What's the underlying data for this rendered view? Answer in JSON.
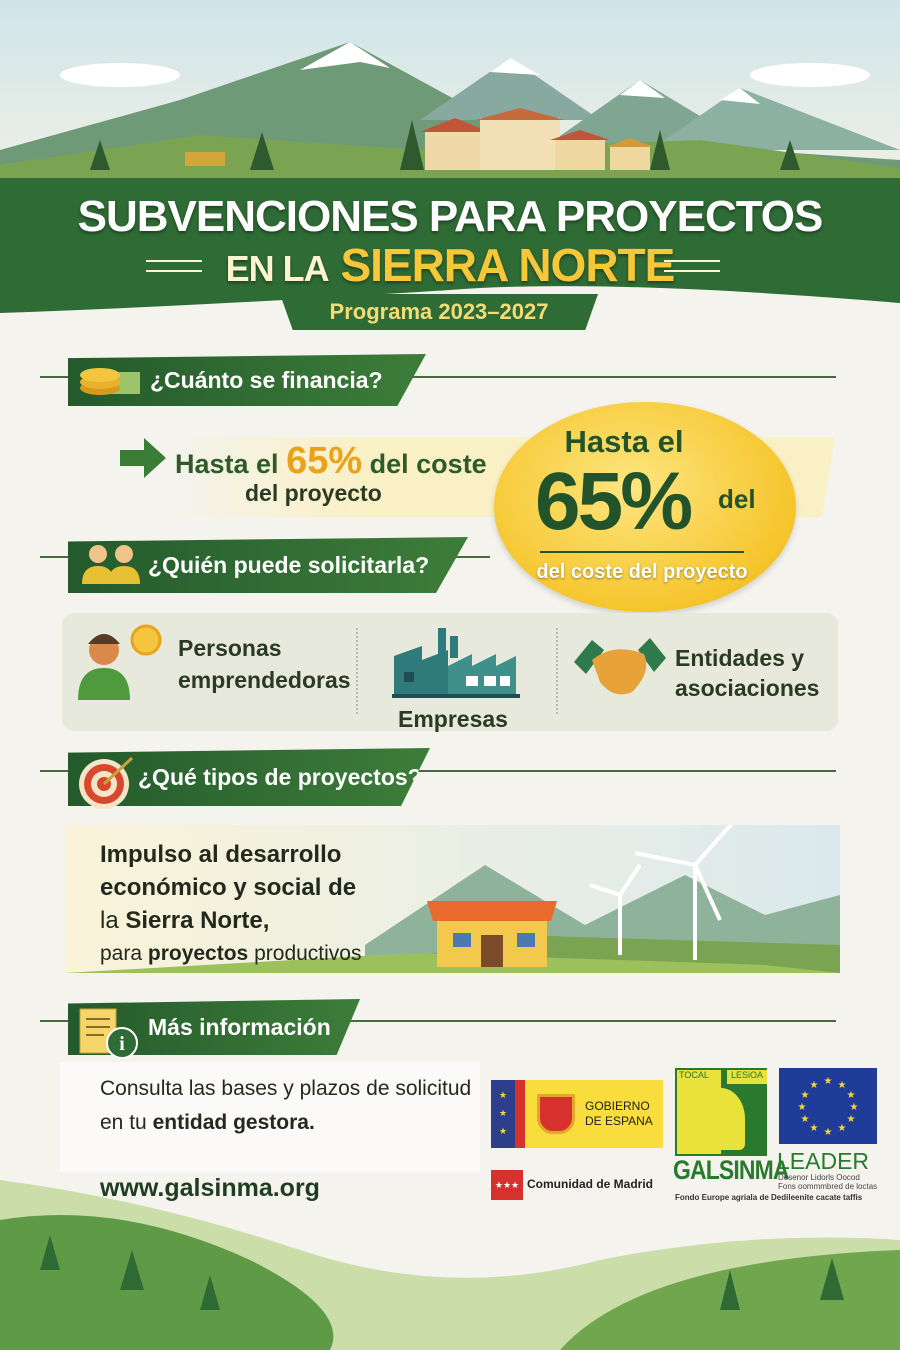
{
  "header": {
    "title_line1": "SUBVENCIONES PARA PROYECTOS",
    "title_line2_prefix": "EN LA",
    "title_line2_highlight": "SIERRA NORTE",
    "program": "Programa 2023–2027"
  },
  "sections": {
    "financing": {
      "heading": "¿Cuánto se financia?",
      "icon": "coins-icon",
      "text_prefix": "Hasta el",
      "percent": "65%",
      "text_suffix": "del coste",
      "text_line2": "del proyecto",
      "badge": {
        "line1": "Hasta el",
        "percent": "65%",
        "del": "del",
        "line3": "del coste del proyecto"
      }
    },
    "who": {
      "heading": "¿Quién puede solicitarla?",
      "icon": "people-icon",
      "items": [
        {
          "label_line1": "Personas",
          "label_line2": "emprendedoras",
          "icon": "entrepreneur-icon"
        },
        {
          "label_line1": "Empresas",
          "icon": "factory-icon"
        },
        {
          "label_line1": "Entidades y",
          "label_line2": "asociaciones",
          "icon": "handshake-icon"
        }
      ]
    },
    "types": {
      "heading": "¿Qué tipos de proyectos?",
      "icon": "target-icon",
      "line1": "Impulso al desarrollo",
      "line2": "económico y social de",
      "line3_prefix": "la",
      "line3_bold": "Sierra Norte",
      "line3_suffix": ",",
      "line4_prefix": "para",
      "line4_bold": "proyectos",
      "line4_suffix": "productivos"
    },
    "info": {
      "heading": "Más información",
      "icon": "document-info-icon",
      "line1": "Consulta las bases y plazos de solicitud",
      "line2_prefix": "en tu",
      "line2_bold": "entidad gestora",
      "line2_suffix": ".",
      "website": "www.galsinma.org"
    }
  },
  "logos": {
    "gobierno": {
      "line1": "GOBIERNO",
      "line2": "DE ESPANA"
    },
    "madrid": "Comunidad de Madrid",
    "galsinma": {
      "top_left": "TOCAL",
      "top_right": "LESiOA",
      "name": "GALSINMA"
    },
    "leader": {
      "name": "LEADER",
      "sub1": "Desenor Lidorls Oocod",
      "sub2": "Fons oommmbred de loctas"
    },
    "fondo": "Fondo Europe agriala de Dedileenite cacate taffis"
  },
  "colors": {
    "dark_green": "#245a2c",
    "yellow": "#f7c73a",
    "accent_orange": "#e9a31b"
  }
}
